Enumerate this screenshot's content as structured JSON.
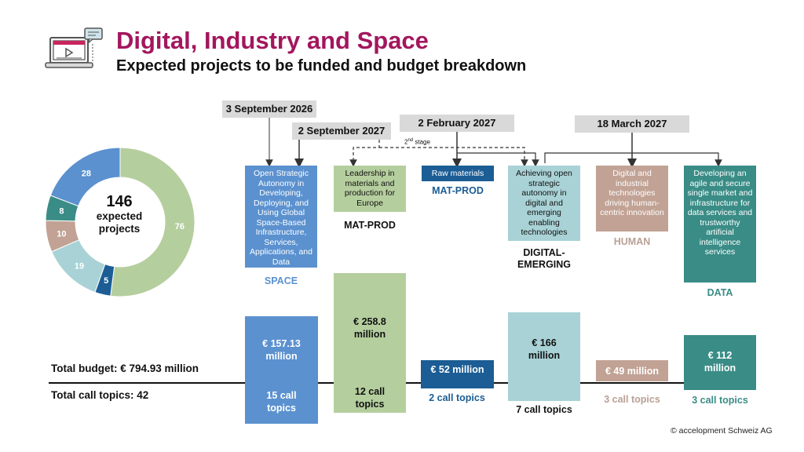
{
  "header": {
    "title": "Digital, Industry and Space",
    "subtitle": "Expected projects to be funded and budget breakdown"
  },
  "donut": {
    "center_number": "146",
    "center_label_1": "expected",
    "center_label_2": "projects",
    "segments": [
      {
        "value": 76,
        "color": "#b5ce9e"
      },
      {
        "value": 5,
        "color": "#1b5d94"
      },
      {
        "value": 19,
        "color": "#a9d2d6"
      },
      {
        "value": 10,
        "color": "#c1a294"
      },
      {
        "value": 8,
        "color": "#3a8c86"
      },
      {
        "value": 28,
        "color": "#5b91cf"
      }
    ]
  },
  "dates": {
    "d1": "3 September 2026",
    "d2": "2 September 2027",
    "d3": "2 February 2027",
    "d4": "18 March 2027",
    "second_stage_base": "2",
    "second_stage_sup": "nd",
    "second_stage_rest": " stage"
  },
  "cards": [
    {
      "text": "Open Strategic Autonomy in Developing, Deploying, and Using Global Space-Based Infrastructure, Services, Applications, and Data",
      "category": "SPACE",
      "budget": "€ 157.13 million",
      "topics": "15 call topics",
      "color": "#5b91cf"
    },
    {
      "text": "Leadership in materials and production for Europe",
      "category": "MAT-PROD",
      "budget": "€ 258.8 million",
      "topics": "12 call topics",
      "color": "#b5ce9e"
    },
    {
      "text": "Raw materials",
      "category": "MAT-PROD",
      "budget": "€ 52 million",
      "topics": "2 call topics",
      "color": "#1b5d94"
    },
    {
      "text": "Achieving open strategic autonomy in digital and emerging enabling technologies",
      "category": "DIGITAL-EMERGING",
      "category_1": "DIGITAL-",
      "category_2": "EMERGING",
      "budget": "€ 166 million",
      "topics": "7 call topics",
      "color": "#a9d2d6"
    },
    {
      "text": "Digital and industrial technologies driving human-centric innovation",
      "category": "HUMAN",
      "budget": "€ 49 million",
      "topics": "3 call topics",
      "color": "#c1a294"
    },
    {
      "text": "Developing an agile and secure single market and infrastructure for data services and trustworthy artificial intelligence services",
      "category": "DATA",
      "budget": "€ 112 million",
      "topics": "3 call topics",
      "color": "#3a8c86"
    }
  ],
  "totals": {
    "budget": "Total budget: € 794.93 million",
    "topics": "Total call topics: 42"
  },
  "footer": {
    "copyright": "© accelopment Schweiz AG"
  }
}
